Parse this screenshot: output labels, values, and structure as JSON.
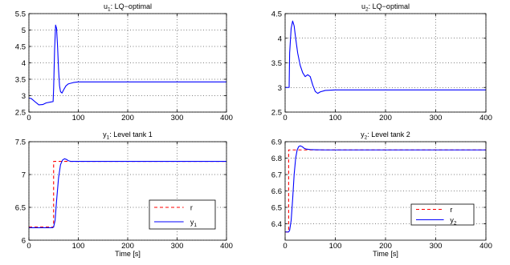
{
  "chart_data": [
    {
      "type": "line",
      "id": "u1",
      "title": "u",
      "title_sub": "1",
      "title_rest": ": LQ−optimal",
      "xlabel": "",
      "ylabel": "",
      "xlim": [
        0,
        400
      ],
      "ylim": [
        2.5,
        5.5
      ],
      "xticks": [
        0,
        100,
        200,
        300,
        400
      ],
      "yticks": [
        2.5,
        3,
        3.5,
        4,
        4.5,
        5,
        5.5
      ],
      "xtick_labels": [
        "0",
        "100",
        "200",
        "300",
        "400"
      ],
      "ytick_labels": [
        "2.5",
        "3",
        "3.5",
        "4",
        "4.5",
        "5",
        "5.5"
      ],
      "grid": true,
      "series": [
        {
          "color": "#0000ff",
          "dash": "solid",
          "x": [
            0,
            5,
            12,
            20,
            28,
            35,
            45,
            49,
            50,
            52,
            54,
            56,
            58,
            60,
            62,
            64,
            67,
            70,
            75,
            80,
            90,
            100,
            150,
            200,
            300,
            400
          ],
          "y": [
            2.93,
            2.91,
            2.82,
            2.72,
            2.73,
            2.78,
            2.81,
            2.82,
            3.2,
            4.4,
            5.15,
            5.05,
            4.5,
            3.8,
            3.3,
            3.12,
            3.08,
            3.17,
            3.3,
            3.36,
            3.4,
            3.42,
            3.42,
            3.42,
            3.42,
            3.42
          ]
        }
      ]
    },
    {
      "type": "line",
      "id": "u2",
      "title": "u",
      "title_sub": "2",
      "title_rest": ": LQ−optimal",
      "xlabel": "",
      "ylabel": "",
      "xlim": [
        0,
        400
      ],
      "ylim": [
        2.5,
        4.5
      ],
      "xticks": [
        0,
        100,
        200,
        300,
        400
      ],
      "yticks": [
        2.5,
        3,
        3.5,
        4,
        4.5
      ],
      "xtick_labels": [
        "0",
        "100",
        "200",
        "300",
        "400"
      ],
      "ytick_labels": [
        "2.5",
        "3",
        "3.5",
        "4",
        "4.5"
      ],
      "grid": true,
      "series": [
        {
          "color": "#0000ff",
          "dash": "solid",
          "x": [
            0,
            8,
            9,
            12,
            15,
            18,
            21,
            25,
            30,
            35,
            40,
            45,
            50,
            55,
            60,
            65,
            70,
            80,
            100,
            150,
            200,
            300,
            400
          ],
          "y": [
            3.0,
            3.0,
            3.7,
            4.2,
            4.35,
            4.25,
            4.0,
            3.7,
            3.45,
            3.3,
            3.22,
            3.26,
            3.22,
            3.05,
            2.92,
            2.88,
            2.91,
            2.94,
            2.95,
            2.95,
            2.95,
            2.95,
            2.95
          ]
        }
      ]
    },
    {
      "type": "line",
      "id": "y1",
      "title": "y",
      "title_sub": "1",
      "title_rest": ": Level tank 1",
      "xlabel": "Time [s]",
      "ylabel": "",
      "xlim": [
        0,
        400
      ],
      "ylim": [
        6,
        7.5
      ],
      "xticks": [
        0,
        100,
        200,
        300,
        400
      ],
      "yticks": [
        6,
        6.5,
        7,
        7.5
      ],
      "xtick_labels": [
        "0",
        "100",
        "200",
        "300",
        "400"
      ],
      "ytick_labels": [
        "6",
        "6.5",
        "7",
        "7.5"
      ],
      "grid": true,
      "legend": {
        "placement": "lower-right",
        "entries": [
          {
            "label": "r",
            "sub": "",
            "color": "#ff0000",
            "dash": "dashed"
          },
          {
            "label": "y",
            "sub": "1",
            "color": "#0000ff",
            "dash": "solid"
          }
        ]
      },
      "series": [
        {
          "color": "#ff0000",
          "dash": "dashed",
          "x": [
            0,
            50,
            50,
            400
          ],
          "y": [
            6.2,
            6.2,
            7.2,
            7.2
          ]
        },
        {
          "color": "#0000ff",
          "dash": "solid",
          "x": [
            0,
            48,
            50,
            53,
            56,
            60,
            64,
            68,
            72,
            76,
            80,
            85,
            90,
            100,
            150,
            200,
            300,
            400
          ],
          "y": [
            6.19,
            6.19,
            6.2,
            6.3,
            6.6,
            6.95,
            7.15,
            7.22,
            7.24,
            7.23,
            7.21,
            7.2,
            7.2,
            7.2,
            7.2,
            7.2,
            7.2,
            7.2
          ]
        }
      ]
    },
    {
      "type": "line",
      "id": "y2",
      "title": "y",
      "title_sub": "2",
      "title_rest": ": Level tank 2",
      "xlabel": "Time [s]",
      "ylabel": "",
      "xlim": [
        0,
        400
      ],
      "ylim": [
        6.3,
        6.9
      ],
      "xticks": [
        0,
        100,
        200,
        300,
        400
      ],
      "yticks": [
        6.4,
        6.5,
        6.6,
        6.7,
        6.8,
        6.9
      ],
      "xtick_labels": [
        "0",
        "100",
        "200",
        "300",
        "400"
      ],
      "ytick_labels": [
        "6.4",
        "6.5",
        "6.6",
        "6.7",
        "6.8",
        "6.9"
      ],
      "grid": true,
      "legend": {
        "placement": "lower-right",
        "entries": [
          {
            "label": "r",
            "sub": "",
            "color": "#ff0000",
            "dash": "dashed"
          },
          {
            "label": "y",
            "sub": "2",
            "color": "#0000ff",
            "dash": "solid"
          }
        ]
      },
      "series": [
        {
          "color": "#ff0000",
          "dash": "dashed",
          "x": [
            0,
            7,
            7,
            400
          ],
          "y": [
            6.35,
            6.35,
            6.85,
            6.85
          ]
        },
        {
          "color": "#0000ff",
          "dash": "solid",
          "x": [
            0,
            7,
            9,
            12,
            15,
            18,
            21,
            24,
            27,
            30,
            34,
            38,
            42,
            50,
            60,
            80,
            100,
            200,
            300,
            400
          ],
          "y": [
            6.35,
            6.35,
            6.36,
            6.42,
            6.55,
            6.7,
            6.8,
            6.85,
            6.87,
            6.875,
            6.87,
            6.86,
            6.855,
            6.852,
            6.851,
            6.85,
            6.85,
            6.85,
            6.85,
            6.85
          ]
        }
      ]
    }
  ]
}
